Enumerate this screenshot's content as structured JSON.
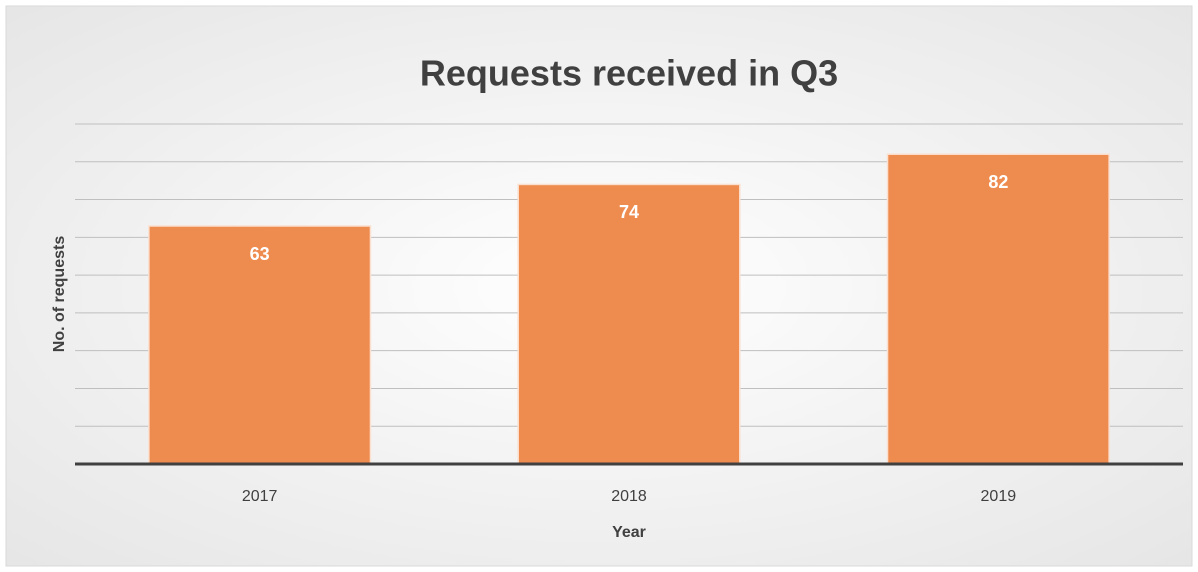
{
  "chart_data": {
    "type": "bar",
    "title": "Requests received in Q3",
    "x_label": "Year",
    "y_label": "No. of requests",
    "categories": [
      "2017",
      "2018",
      "2019"
    ],
    "values": [
      63,
      74,
      82
    ],
    "color": "#ee8c50",
    "ylim": [
      0,
      90
    ],
    "yticks": [
      0,
      10,
      20,
      30,
      40,
      50,
      60,
      70,
      80,
      90
    ],
    "grid": true,
    "data_labels": true
  }
}
